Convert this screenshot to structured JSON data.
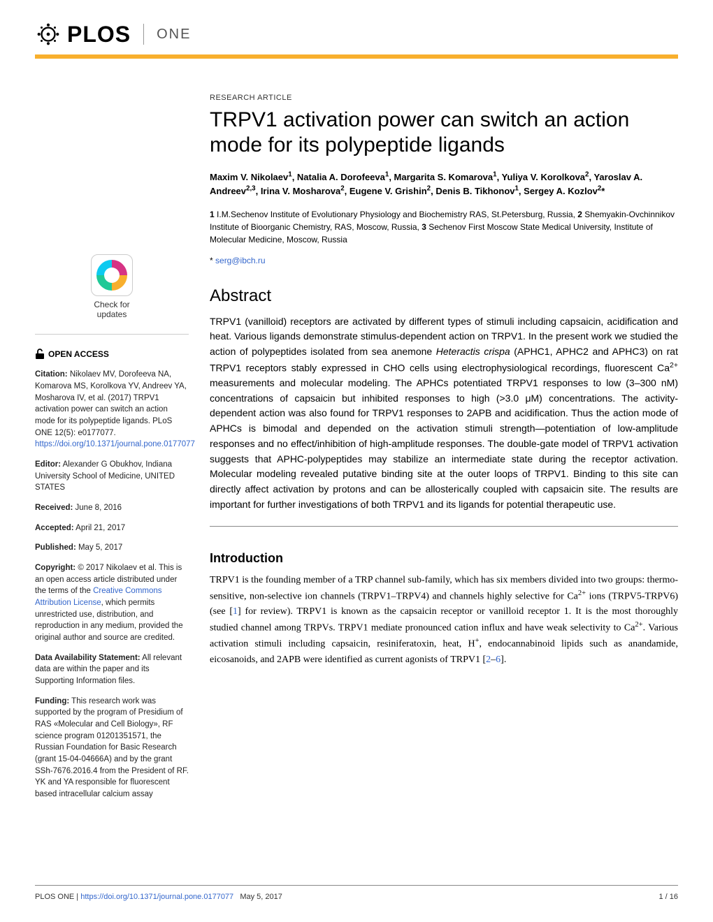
{
  "header": {
    "logo_text": "PLOS",
    "journal": "ONE"
  },
  "article": {
    "type": "RESEARCH ARTICLE",
    "title": "TRPV1 activation power can switch an action mode for its polypeptide ligands",
    "authors_html": "Maxim V. Nikolaev<sup>1</sup>, Natalia A. Dorofeeva<sup>1</sup>, Margarita S. Komarova<sup>1</sup>, Yuliya V. Korolkova<sup>2</sup>, Yaroslav A. Andreev<sup>2,3</sup>, Irina V. Mosharova<sup>2</sup>, Eugene V. Grishin<sup>2</sup>, Denis B. Tikhonov<sup>1</sup>, Sergey A. Kozlov<sup>2</sup>*",
    "affiliations_html": "<b>1</b> I.M.Sechenov Institute of Evolutionary Physiology and Biochemistry RAS, St.Petersburg, Russia, <b>2</b> Shemyakin-Ovchinnikov Institute of Bioorganic Chemistry, RAS, Moscow, Russia, <b>3</b> Sechenov First Moscow State Medical University, Institute of Molecular Medicine, Moscow, Russia",
    "correspondence_prefix": "* ",
    "correspondence_email": "serg@ibch.ru"
  },
  "abstract": {
    "heading": "Abstract",
    "text_html": "TRPV1 (vanilloid) receptors are activated by different types of stimuli including capsaicin, acidification and heat. Various ligands demonstrate stimulus-dependent action on TRPV1. In the present work we studied the action of polypeptides isolated from sea anemone <em>Heteractis crispa</em> (APHC1, APHC2 and APHC3) on rat TRPV1 receptors stably expressed in CHO cells using electrophysiological recordings, fluorescent Ca<sup>2+</sup> measurements and molecular modeling. The APHCs potentiated TRPV1 responses to low (3–300 nM) concentrations of capsaicin but inhibited responses to high (>3.0 μM) concentrations. The activity-dependent action was also found for TRPV1 responses to 2APB and acidification. Thus the action mode of APHCs is bimodal and depended on the activation stimuli strength—potentiation of low-amplitude responses and no effect/inhibition of high-amplitude responses. The double-gate model of TRPV1 activation suggests that APHC-polypeptides may stabilize an intermediate state during the receptor activation. Molecular modeling revealed putative binding site at the outer loops of TRPV1. Binding to this site can directly affect activation by protons and can be allosterically coupled with capsaicin site. The results are important for further investigations of both TRPV1 and its ligands for potential therapeutic use."
  },
  "introduction": {
    "heading": "Introduction",
    "text_html": "TRPV1 is the founding member of a TRP channel sub-family, which has six members divided into two groups: thermo-sensitive, non-selective ion channels (TRPV1–TRPV4) and channels highly selective for Ca<sup>2+</sup> ions (TRPV5-TRPV6) (see [<span class=\"ref-link\">1</span>] for review). TRPV1 is known as the capsaicin receptor or vanilloid receptor 1. It is the most thoroughly studied channel among TRPVs. TRPV1 mediate pronounced cation influx and have weak selectivity to Ca<sup>2+</sup>. Various activation stimuli including capsaicin, resiniferatoxin, heat, H<sup>+</sup>, endocannabinoid lipids such as anandamide, eicosanoids, and 2APB were identified as current agonists of TRPV1 [<span class=\"ref-link\">2</span>–<span class=\"ref-link\">6</span>]."
  },
  "sidebar": {
    "check_updates_line1": "Check for",
    "check_updates_line2": "updates",
    "open_access": "OPEN ACCESS",
    "citation_label": "Citation:",
    "citation_text": " Nikolaev MV, Dorofeeva NA, Komarova MS, Korolkova YV, Andreev YA, Mosharova IV, et al. (2017) TRPV1 activation power can switch an action mode for its polypeptide ligands. PLoS ONE 12(5): e0177077. ",
    "citation_link": "https://doi.org/10.1371/journal.pone.0177077",
    "editor_label": "Editor:",
    "editor_text": " Alexander G Obukhov, Indiana University School of Medicine, UNITED STATES",
    "received_label": "Received:",
    "received_text": " June 8, 2016",
    "accepted_label": "Accepted:",
    "accepted_text": " April 21, 2017",
    "published_label": "Published:",
    "published_text": " May 5, 2017",
    "copyright_label": "Copyright:",
    "copyright_text1": " © 2017 Nikolaev et al. This is an open access article distributed under the terms of the ",
    "copyright_link": "Creative Commons Attribution License",
    "copyright_text2": ", which permits unrestricted use, distribution, and reproduction in any medium, provided the original author and source are credited.",
    "data_label": "Data Availability Statement:",
    "data_text": " All relevant data are within the paper and its Supporting Information files.",
    "funding_label": "Funding:",
    "funding_text": " This research work was supported by the program of Presidium of RAS «Molecular and Cell Biology», RF science program 01201351571, the Russian Foundation for Basic Research (grant 15-04-04666A) and by the grant SSh-7676.2016.4 from the President of RF. YK and YA responsible for fluorescent based intracellular calcium assay"
  },
  "footer": {
    "journal": "PLOS ONE | ",
    "doi_link": "https://doi.org/10.1371/journal.pone.0177077",
    "date": "May 5, 2017",
    "page": "1 / 16"
  },
  "colors": {
    "accent": "#f8af2d",
    "link": "#3366cc"
  }
}
